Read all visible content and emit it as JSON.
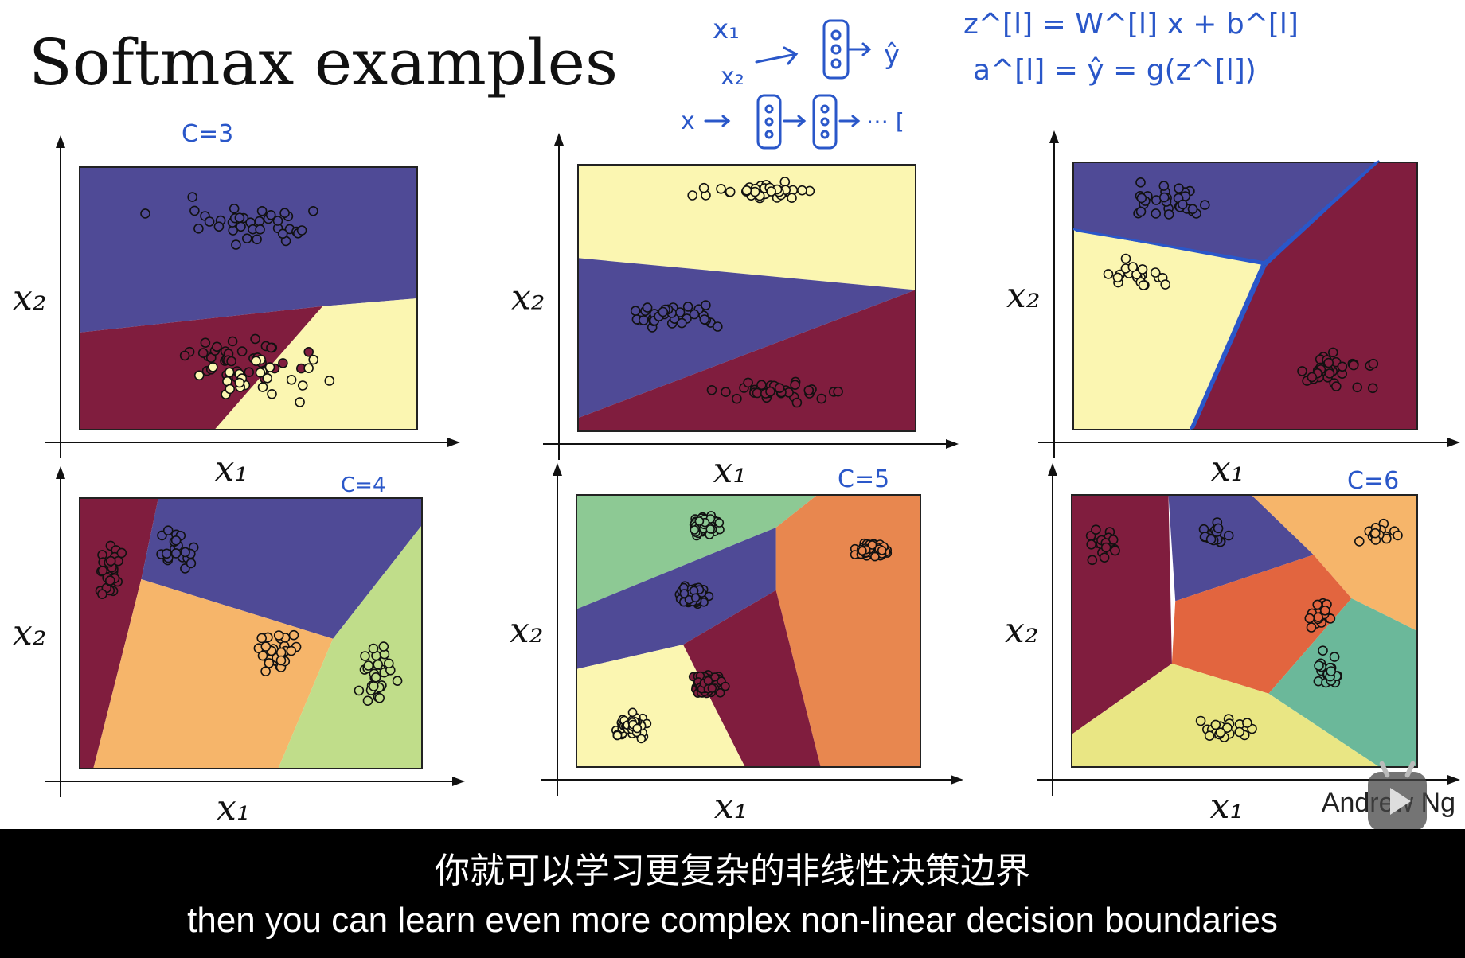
{
  "slide": {
    "title": "Softmax examples",
    "credit": "Andrew Ng"
  },
  "annotations": {
    "c3": "C=3",
    "c4": "C=4",
    "c5": "C=5",
    "c6": "C=6",
    "net_x1": "x₁",
    "net_x2": "x₂",
    "net_yhat": "ŷ",
    "net_deep": "x → [∘] → [∘] → ⋯ [",
    "eq_z": "z^[l] = W^[l] x + b^[l]",
    "eq_a": "a^[l] = ŷ = g(z^[l])"
  },
  "colors": {
    "purple": "#4f4a96",
    "maroon": "#801d3e",
    "cream": "#fbf6b1",
    "green": "#8dc994",
    "orange": "#e8874f",
    "light_orange": "#f6b56a",
    "light_green": "#c0dd8a",
    "red_orange": "#e2653f",
    "teal": "#6bb89a",
    "yellow": "#e9e684",
    "ink": "#2a57c9"
  },
  "subtitles": {
    "chinese": "你就可以学习更复杂的非线性决策边界",
    "english": "then you can learn even more complex non-linear decision boundaries"
  },
  "chart_data": [
    {
      "type": "scatter",
      "xlabel": "x₁",
      "ylabel": "x₂",
      "classes": 3,
      "regions": [
        "purple",
        "maroon",
        "cream"
      ],
      "clusters": [
        {
          "color": "purple",
          "center": [
            0.5,
            0.78
          ],
          "spread": [
            0.4,
            0.16
          ],
          "count": 36
        },
        {
          "color": "maroon",
          "center": [
            0.48,
            0.27
          ],
          "spread": [
            0.3,
            0.12
          ],
          "count": 35
        },
        {
          "color": "cream",
          "center": [
            0.5,
            0.2
          ],
          "spread": [
            0.4,
            0.13
          ],
          "count": 25
        }
      ]
    },
    {
      "type": "scatter",
      "xlabel": "x₁",
      "ylabel": "x₂",
      "classes": 3,
      "regions": [
        "cream",
        "purple",
        "maroon"
      ],
      "clusters": [
        {
          "color": "cream",
          "center": [
            0.55,
            0.9
          ],
          "spread": [
            0.28,
            0.05
          ],
          "count": 34
        },
        {
          "color": "purple",
          "center": [
            0.3,
            0.43
          ],
          "spread": [
            0.25,
            0.06
          ],
          "count": 34
        },
        {
          "color": "maroon",
          "center": [
            0.6,
            0.15
          ],
          "spread": [
            0.28,
            0.06
          ],
          "count": 34
        }
      ]
    },
    {
      "type": "scatter",
      "xlabel": "x₁",
      "ylabel": "x₂",
      "classes": 3,
      "regions": [
        "purple",
        "cream",
        "maroon"
      ],
      "clusters": [
        {
          "color": "purple",
          "center": [
            0.28,
            0.85
          ],
          "spread": [
            0.2,
            0.1
          ],
          "count": 30
        },
        {
          "color": "cream",
          "center": [
            0.18,
            0.58
          ],
          "spread": [
            0.18,
            0.09
          ],
          "count": 22
        },
        {
          "color": "maroon",
          "center": [
            0.76,
            0.22
          ],
          "spread": [
            0.18,
            0.11
          ],
          "count": 34
        }
      ]
    },
    {
      "type": "scatter",
      "xlabel": "x₁",
      "ylabel": "x₂",
      "classes": 4,
      "regions": [
        "maroon",
        "purple",
        "light_orange",
        "light_green"
      ],
      "clusters": [
        {
          "color": "maroon",
          "center": [
            0.08,
            0.72
          ],
          "spread": [
            0.06,
            0.17
          ],
          "count": 28
        },
        {
          "color": "purple",
          "center": [
            0.28,
            0.8
          ],
          "spread": [
            0.1,
            0.14
          ],
          "count": 22
        },
        {
          "color": "light_orange",
          "center": [
            0.58,
            0.42
          ],
          "spread": [
            0.1,
            0.16
          ],
          "count": 26
        },
        {
          "color": "light_green",
          "center": [
            0.87,
            0.35
          ],
          "spread": [
            0.08,
            0.18
          ],
          "count": 30
        }
      ]
    },
    {
      "type": "scatter",
      "xlabel": "x₁",
      "ylabel": "x₂",
      "classes": 5,
      "regions": [
        "green",
        "orange",
        "purple",
        "maroon",
        "cream"
      ],
      "clusters": [
        {
          "color": "green",
          "center": [
            0.37,
            0.89
          ],
          "spread": [
            0.07,
            0.06
          ],
          "count": 70
        },
        {
          "color": "orange",
          "center": [
            0.86,
            0.8
          ],
          "spread": [
            0.07,
            0.05
          ],
          "count": 60
        },
        {
          "color": "purple",
          "center": [
            0.34,
            0.63
          ],
          "spread": [
            0.07,
            0.07
          ],
          "count": 70
        },
        {
          "color": "maroon",
          "center": [
            0.38,
            0.3
          ],
          "spread": [
            0.07,
            0.07
          ],
          "count": 70
        },
        {
          "color": "cream",
          "center": [
            0.16,
            0.15
          ],
          "spread": [
            0.08,
            0.06
          ],
          "count": 70
        }
      ]
    },
    {
      "type": "scatter",
      "xlabel": "x₁",
      "ylabel": "x₂",
      "classes": 6,
      "regions": [
        "maroon",
        "purple",
        "light_orange",
        "red_orange",
        "teal",
        "yellow"
      ],
      "clusters": [
        {
          "color": "maroon",
          "center": [
            0.1,
            0.82
          ],
          "spread": [
            0.08,
            0.08
          ],
          "count": 20
        },
        {
          "color": "purple",
          "center": [
            0.42,
            0.85
          ],
          "spread": [
            0.09,
            0.07
          ],
          "count": 18
        },
        {
          "color": "light_orange",
          "center": [
            0.89,
            0.86
          ],
          "spread": [
            0.09,
            0.07
          ],
          "count": 22
        },
        {
          "color": "red_orange",
          "center": [
            0.72,
            0.55
          ],
          "spread": [
            0.05,
            0.1
          ],
          "count": 22
        },
        {
          "color": "teal",
          "center": [
            0.75,
            0.37
          ],
          "spread": [
            0.06,
            0.1
          ],
          "count": 18
        },
        {
          "color": "yellow",
          "center": [
            0.45,
            0.14
          ],
          "spread": [
            0.12,
            0.06
          ],
          "count": 20
        }
      ]
    }
  ]
}
